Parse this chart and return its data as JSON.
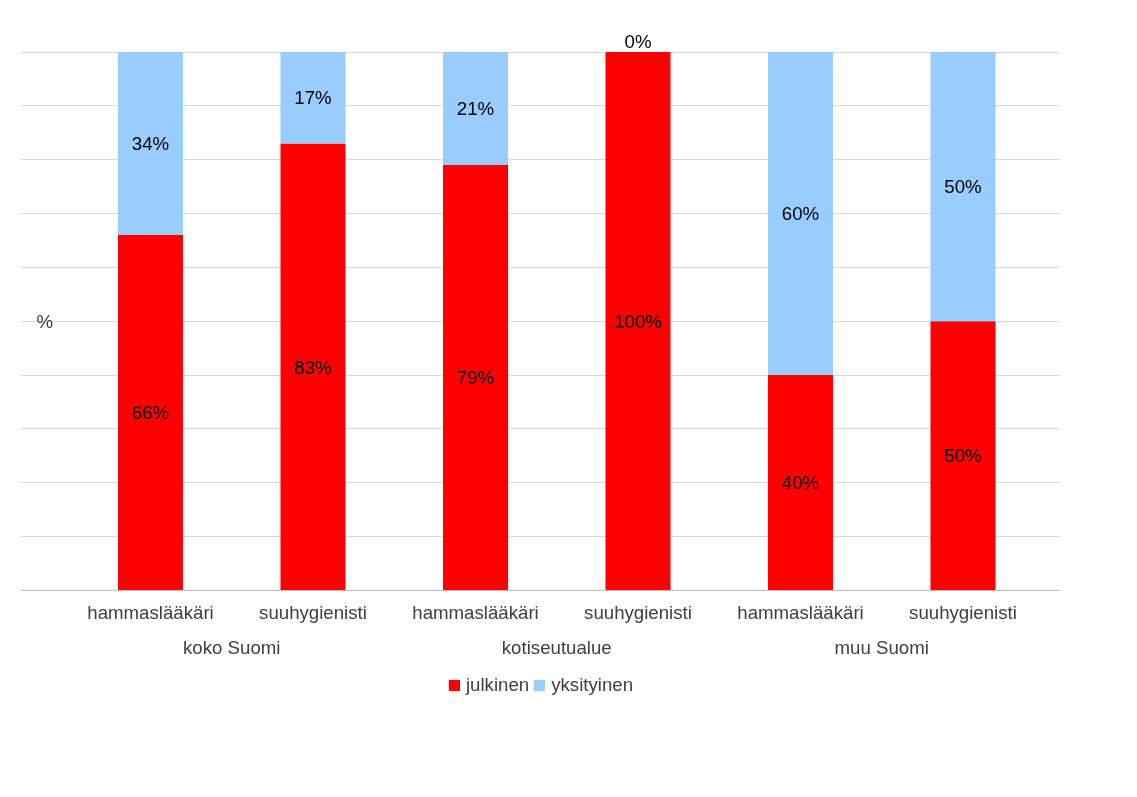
{
  "chart_data": {
    "type": "bar",
    "stacked": true,
    "ylabel": "%",
    "categories": [
      "hammaslääkäri",
      "suuhygienisti",
      "hammaslääkäri",
      "suuhygienisti",
      "hammaslääkäri",
      "suuhygienisti"
    ],
    "annotations": [
      "koko Suomi",
      "kotiseutualue",
      "muu Suomi"
    ],
    "series": [
      {
        "name": "julkinen",
        "color": "#ff0000",
        "values": [
          66,
          83,
          79,
          100,
          40,
          50
        ],
        "value_labels": [
          "66%",
          "83%",
          "79%",
          "100%",
          "40%",
          "50%"
        ]
      },
      {
        "name": "yksityinen",
        "color": "#99ccff",
        "values": [
          34,
          17,
          21,
          0,
          60,
          50
        ],
        "value_labels": [
          "34%",
          "17%",
          "21%",
          "0%",
          "60%",
          "50%"
        ]
      }
    ],
    "tick_labels": "x",
    "grid": "y",
    "legend": "bottom"
  }
}
